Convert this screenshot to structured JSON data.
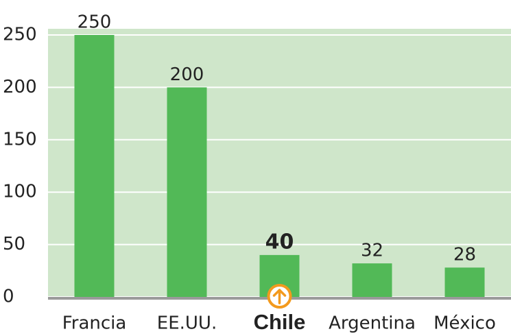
{
  "chart_data": {
    "type": "bar",
    "categories": [
      "Francia",
      "EE.UU.",
      "Chile",
      "Argentina",
      "México"
    ],
    "values": [
      250,
      200,
      40,
      32,
      28
    ],
    "color": "#52b957",
    "highlight": 2,
    "ylim": [
      0,
      250
    ],
    "yticks": [
      0,
      50,
      100,
      150,
      200,
      250
    ],
    "grid": true
  }
}
